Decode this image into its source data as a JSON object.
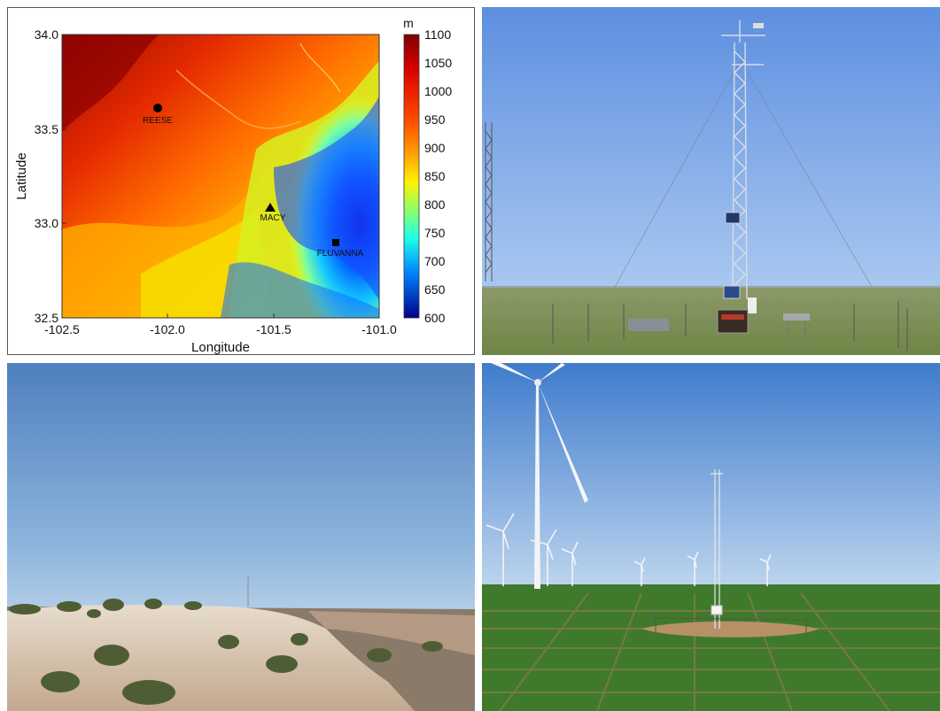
{
  "map": {
    "xlabel": "Longitude",
    "ylabel": "Latitude",
    "x_ticks": [
      "-102.5",
      "-102.0",
      "-101.5",
      "-101.0"
    ],
    "y_ticks": [
      "34.0",
      "33.5",
      "33.0",
      "32.5"
    ],
    "colorbar_unit": "m",
    "colorbar_ticks": [
      "1100",
      "1050",
      "1000",
      "950",
      "900",
      "850",
      "800",
      "750",
      "700",
      "650",
      "600"
    ],
    "stations": [
      {
        "name": "REESE",
        "marker": "circle",
        "lon": -102.04,
        "lat": 33.6
      },
      {
        "name": "MACY",
        "marker": "triangle",
        "lon": -101.52,
        "lat": 33.08
      },
      {
        "name": "FLUVANNA",
        "marker": "square",
        "lon": -101.2,
        "lat": 32.9
      }
    ]
  },
  "chart_data": {
    "type": "heatmap",
    "xlabel": "Longitude",
    "ylabel": "Latitude",
    "xlim": [
      -102.5,
      -101.0
    ],
    "ylim": [
      32.5,
      34.0
    ],
    "color_range": [
      600,
      1100
    ],
    "colorbar_unit": "m",
    "points": [
      {
        "label": "REESE",
        "x": -102.04,
        "y": 33.6
      },
      {
        "label": "MACY",
        "x": -101.52,
        "y": 33.08
      },
      {
        "label": "FLUVANNA",
        "x": -101.2,
        "y": 32.9
      }
    ]
  },
  "colors": {
    "sky_top": "#5b8fd6",
    "sky_bottom": "#b9d3ee",
    "grass": "#7d8f55",
    "crop": "#3f7a2c",
    "soil": "#b78b66",
    "bluff": "#d9c7b4"
  }
}
